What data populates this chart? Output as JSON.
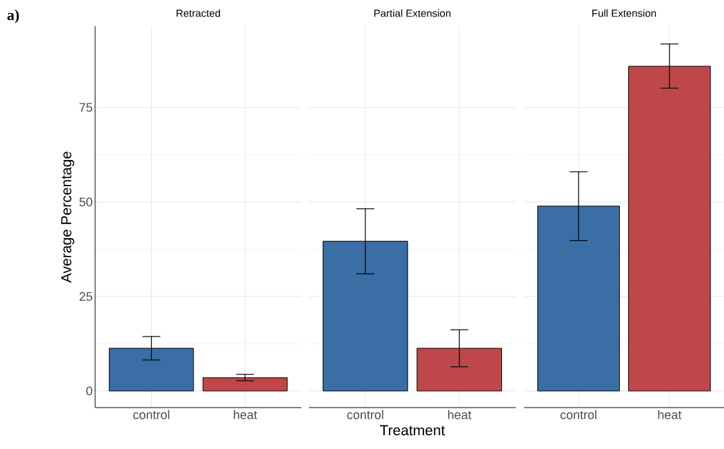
{
  "chart_data": [
    {
      "type": "bar",
      "title": "Retracted",
      "ylabel": "Average Percentage",
      "annotations": [
        "a)"
      ],
      "categories": [
        "control",
        "heat"
      ],
      "values": [
        11.3,
        3.5
      ],
      "colors": [
        "#3a6ea5",
        "#bf4749"
      ],
      "errors": [
        [
          8.2,
          14.4
        ],
        [
          2.7,
          4.4
        ]
      ],
      "ylim": [
        -4.4,
        96.5
      ],
      "yticks": [
        0,
        25,
        50,
        75
      ],
      "grid": true
    },
    {
      "type": "bar",
      "title": "Partial Extension",
      "xlabel": "Treatment",
      "categories": [
        "control",
        "heat"
      ],
      "values": [
        39.6,
        11.3
      ],
      "colors": [
        "#3a6ea5",
        "#bf4749"
      ],
      "errors": [
        [
          31.0,
          48.2
        ],
        [
          6.4,
          16.2
        ]
      ],
      "ylim": [
        -4.4,
        96.5
      ],
      "yticks": [
        0,
        25,
        50,
        75
      ],
      "grid": true,
      "tick_labels": "x"
    },
    {
      "type": "bar",
      "title": "Full Extension",
      "categories": [
        "control",
        "heat"
      ],
      "values": [
        48.9,
        85.9
      ],
      "colors": [
        "#3a6ea5",
        "#bf4749"
      ],
      "errors": [
        [
          39.8,
          58.0
        ],
        [
          80.1,
          91.8
        ]
      ],
      "ylim": [
        -4.4,
        96.5
      ],
      "yticks": [
        0,
        25,
        50,
        75
      ],
      "grid": true,
      "tick_labels": "x"
    }
  ]
}
